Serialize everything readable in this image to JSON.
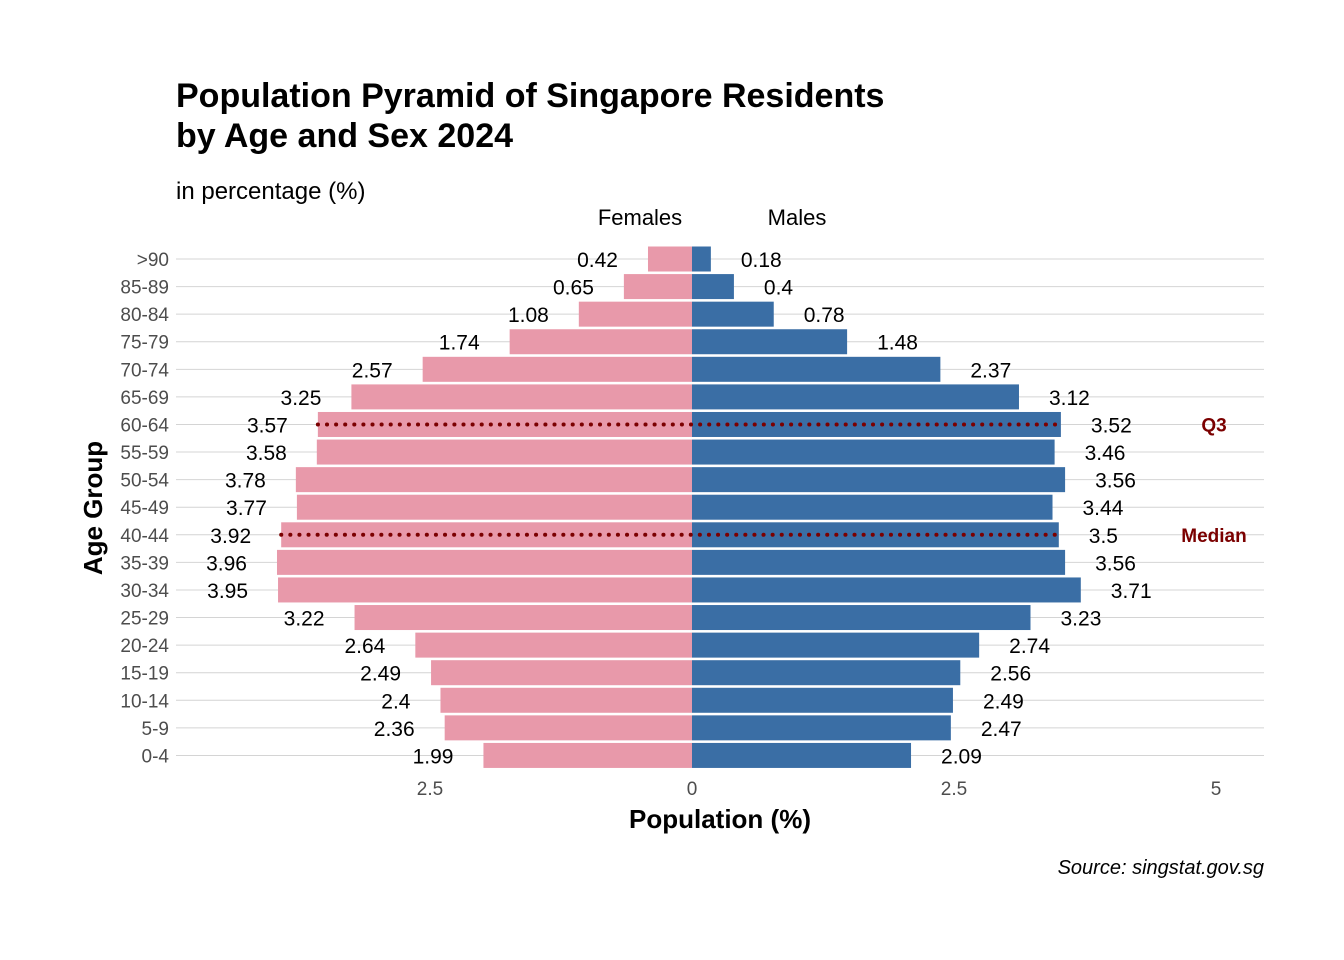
{
  "chart_data": {
    "type": "bar",
    "orientation": "horizontal",
    "layout": "population-pyramid",
    "title_lines": [
      "Population Pyramid of Singapore Residents",
      "by Age and Sex 2024"
    ],
    "subtitle": "in percentage (%)",
    "caption": "Source: singstat.gov.sg",
    "xlabel": "Population (%)",
    "ylabel": "Age Group",
    "side_labels": {
      "left": "Females",
      "right": "Males"
    },
    "x_ticks": [
      {
        "value": -2.5,
        "label": "2.5"
      },
      {
        "value": 0,
        "label": "0"
      },
      {
        "value": 2.5,
        "label": "2.5"
      },
      {
        "value": 5,
        "label": "5"
      }
    ],
    "xlim": [
      -5,
      5
    ],
    "grid": "horizontal",
    "categories": [
      "0-4",
      "5-9",
      "10-14",
      "15-19",
      "20-24",
      "25-29",
      "30-34",
      "35-39",
      "40-44",
      "45-49",
      "50-54",
      "55-59",
      "60-64",
      "65-69",
      "70-74",
      "75-79",
      "80-84",
      "85-89",
      ">90"
    ],
    "series": [
      {
        "name": "Females",
        "color": "#E899AA",
        "values": [
          1.99,
          2.36,
          2.4,
          2.49,
          2.64,
          3.22,
          3.95,
          3.96,
          3.92,
          3.77,
          3.78,
          3.58,
          3.57,
          3.25,
          2.57,
          1.74,
          1.08,
          0.65,
          0.42
        ],
        "labels": [
          "1.99",
          "2.36",
          "2.4",
          "2.49",
          "2.64",
          "3.22",
          "3.95",
          "3.96",
          "3.92",
          "3.77",
          "3.78",
          "3.58",
          "3.57",
          "3.25",
          "2.57",
          "1.74",
          "1.08",
          "0.65",
          "0.42"
        ]
      },
      {
        "name": "Males",
        "color": "#3A6EA5",
        "values": [
          2.09,
          2.47,
          2.49,
          2.56,
          2.74,
          3.23,
          3.71,
          3.56,
          3.5,
          3.44,
          3.56,
          3.46,
          3.52,
          3.12,
          2.37,
          1.48,
          0.78,
          0.4,
          0.18
        ],
        "labels": [
          "2.09",
          "2.47",
          "2.49",
          "2.56",
          "2.74",
          "3.23",
          "3.71",
          "3.56",
          "3.5",
          "3.44",
          "3.56",
          "3.46",
          "3.52",
          "3.12",
          "2.37",
          "1.48",
          "0.78",
          "0.4",
          "0.18"
        ]
      }
    ],
    "reference_lines": [
      {
        "label": "Q3",
        "category": "60-64",
        "from": -3.57,
        "to": 3.52,
        "color": "#7B0000",
        "style": "dotted"
      },
      {
        "label": "Median",
        "category": "40-44",
        "from": -3.92,
        "to": 3.5,
        "color": "#7B0000",
        "style": "dotted"
      }
    ]
  }
}
